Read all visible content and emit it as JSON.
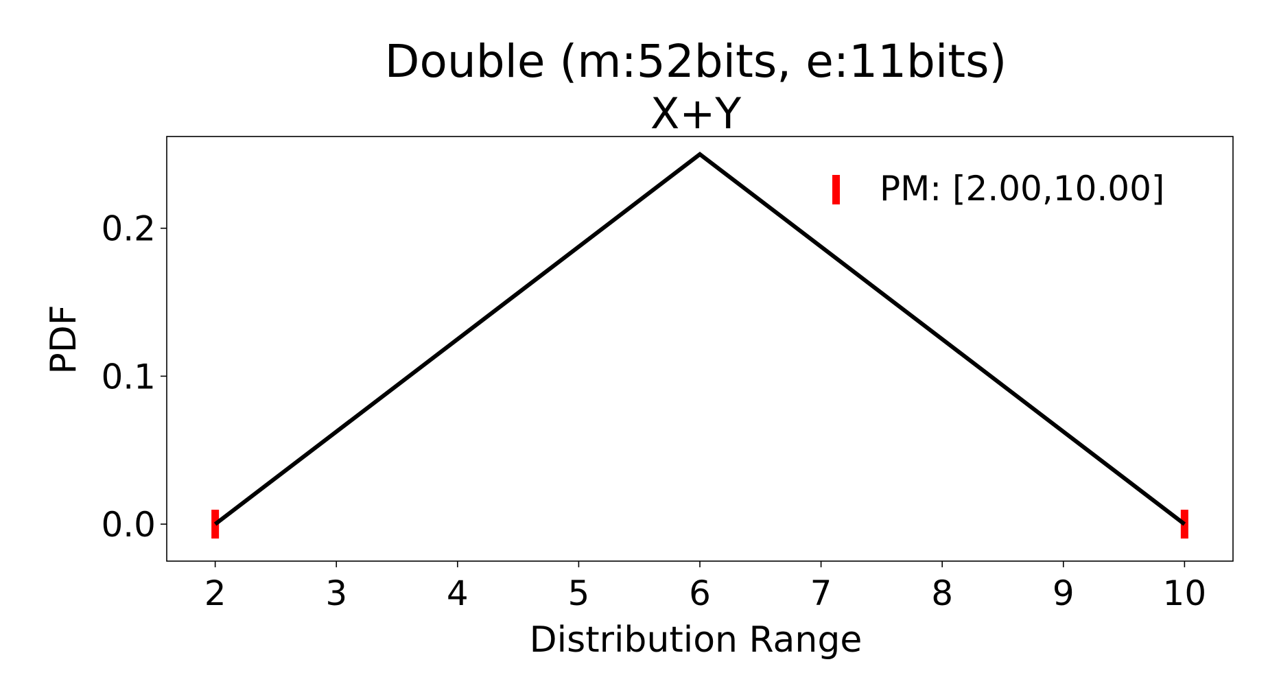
{
  "chart_data": {
    "type": "line",
    "title": "Double (m:52bits, e:11bits)",
    "subtitle": "X+Y",
    "xlabel": "Distribution Range",
    "ylabel": "PDF",
    "xlim": [
      1.6,
      10.4
    ],
    "ylim": [
      -0.025,
      0.262
    ],
    "xticks": [
      2,
      3,
      4,
      5,
      6,
      7,
      8,
      9,
      10
    ],
    "xtick_labels": [
      "2",
      "3",
      "4",
      "5",
      "6",
      "7",
      "8",
      "9",
      "10"
    ],
    "yticks": [
      0.0,
      0.1,
      0.2
    ],
    "ytick_labels": [
      "0.0",
      "0.1",
      "0.2"
    ],
    "grid": false,
    "legend_position": "top-right",
    "series": [
      {
        "kind": "line",
        "color": "#000000",
        "x": [
          2,
          6,
          10
        ],
        "y": [
          0.0,
          0.25,
          0.0
        ]
      },
      {
        "name": "PM: [2.00,10.00]",
        "kind": "marker",
        "marker": "vertical-bar",
        "color": "#ff0000",
        "x": [
          2.0,
          10.0
        ],
        "y": [
          0.0,
          0.0
        ]
      }
    ]
  }
}
